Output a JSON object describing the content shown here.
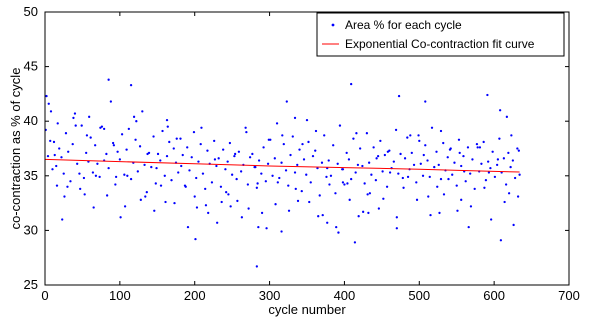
{
  "chart_data": {
    "type": "scatter",
    "xlabel": "cycle number",
    "ylabel": "co-contraction as % of cycle",
    "xlim": [
      0,
      700
    ],
    "ylim": [
      25,
      50
    ],
    "x_ticks": [
      0,
      100,
      200,
      300,
      400,
      500,
      600,
      700
    ],
    "y_ticks": [
      25,
      30,
      35,
      40,
      45,
      50
    ],
    "grid": false,
    "legend_position": "top-right",
    "colors": {
      "points": "#0000ff",
      "fit": "#ff0000",
      "axes": "#000000"
    },
    "series": [
      {
        "name": "Area % for each cycle",
        "type": "scatter",
        "x": [
          1,
          4,
          7,
          10,
          13,
          16,
          19,
          22,
          25,
          28,
          31,
          34,
          37,
          40,
          43,
          46,
          49,
          52,
          55,
          58,
          61,
          64,
          67,
          70,
          73,
          76,
          79,
          82,
          85,
          88,
          91,
          94,
          97,
          100,
          103,
          106,
          109,
          112,
          115,
          118,
          121,
          124,
          127,
          130,
          133,
          136,
          139,
          142,
          145,
          148,
          151,
          154,
          157,
          160,
          163,
          166,
          169,
          172,
          175,
          178,
          181,
          184,
          187,
          190,
          193,
          196,
          199,
          202,
          205,
          208,
          211,
          214,
          217,
          220,
          223,
          226,
          229,
          232,
          235,
          238,
          241,
          244,
          247,
          250,
          253,
          256,
          259,
          262,
          265,
          268,
          271,
          274,
          277,
          280,
          283,
          286,
          289,
          292,
          295,
          298,
          301,
          304,
          307,
          310,
          313,
          316,
          319,
          322,
          325,
          328,
          331,
          334,
          337,
          340,
          343,
          346,
          349,
          352,
          355,
          358,
          361,
          364,
          367,
          370,
          373,
          376,
          379,
          382,
          385,
          388,
          391,
          394,
          397,
          400,
          403,
          406,
          409,
          412,
          415,
          418,
          421,
          424,
          427,
          430,
          433,
          436,
          439,
          442,
          445,
          448,
          451,
          454,
          457,
          460,
          463,
          466,
          469,
          472,
          475,
          478,
          481,
          484,
          487,
          490,
          493,
          496,
          499,
          502,
          505,
          508,
          511,
          514,
          517,
          520,
          523,
          526,
          529,
          532,
          535,
          538,
          541,
          544,
          547,
          550,
          553,
          556,
          559,
          562,
          565,
          568,
          571,
          574,
          577,
          580,
          583,
          586,
          589,
          592,
          595,
          598,
          601,
          604,
          607,
          610,
          613,
          616,
          619,
          622,
          625,
          628,
          631,
          634,
          2,
          8,
          15,
          23,
          30,
          38,
          47,
          56,
          65,
          74,
          83,
          92,
          101,
          110,
          119,
          128,
          137,
          146,
          155,
          164,
          173,
          182,
          191,
          200,
          209,
          218,
          227,
          236,
          245,
          254,
          263,
          272,
          281,
          290,
          299,
          308,
          317,
          326,
          335,
          344,
          353,
          362,
          371,
          380,
          389,
          398,
          407,
          416,
          425,
          434,
          443,
          452,
          461,
          470,
          479,
          488,
          497,
          506,
          515,
          524,
          533,
          542,
          551,
          560,
          569,
          578,
          587,
          596,
          605,
          614,
          623,
          632,
          5,
          12,
          26,
          41,
          53,
          68,
          79,
          95,
          107,
          122,
          134,
          149,
          161,
          176,
          188,
          203,
          215,
          230,
          242,
          257,
          269,
          284,
          296,
          311,
          323,
          338,
          350,
          365,
          377,
          392,
          404,
          419,
          431,
          446,
          458,
          473,
          485,
          500,
          512,
          527,
          539,
          554,
          566,
          581,
          593,
          608,
          620,
          633,
          283,
          285,
          409,
          414,
          609,
          626,
          17,
          59,
          85,
          115,
          163,
          201,
          248,
          316,
          334,
          377,
          398,
          432,
          470,
          508,
          529,
          556,
          591,
          617
        ],
        "y": [
          39.2,
          36.8,
          38.2,
          35.6,
          36.9,
          34.1,
          37.5,
          36.7,
          35.2,
          38.9,
          37.2,
          34.5,
          37.9,
          40.7,
          36.1,
          35.2,
          39.6,
          34.8,
          37.1,
          36.3,
          38.5,
          35.3,
          37.8,
          36.1,
          34.9,
          39.5,
          36.4,
          37.0,
          35.7,
          41.8,
          38.0,
          34.2,
          37.2,
          36.5,
          38.8,
          35.1,
          37.4,
          39.3,
          34.7,
          36.2,
          38.3,
          35.4,
          37.7,
          40.9,
          36.0,
          33.5,
          37.1,
          35.8,
          38.6,
          34.3,
          37.0,
          36.4,
          39.1,
          35.0,
          36.8,
          38.1,
          34.6,
          37.5,
          36.2,
          35.3,
          38.4,
          36.9,
          34.1,
          37.6,
          35.5,
          36.7,
          39.0,
          34.8,
          36.3,
          37.9,
          35.2,
          33.8,
          37.3,
          36.1,
          34.4,
          38.2,
          35.9,
          36.6,
          34.0,
          37.4,
          35.6,
          36.3,
          38.0,
          35.1,
          36.8,
          34.7,
          37.2,
          35.4,
          36.0,
          39.4,
          34.2,
          36.7,
          37.0,
          35.8,
          33.9,
          36.4,
          35.2,
          37.6,
          34.5,
          36.1,
          38.3,
          35.0,
          36.6,
          39.8,
          34.8,
          36.2,
          37.9,
          35.5,
          34.1,
          36.9,
          38.6,
          35.3,
          36.0,
          37.4,
          33.6,
          36.5,
          35.1,
          38.1,
          34.4,
          36.8,
          37.3,
          35.7,
          33.2,
          36.2,
          38.7,
          34.9,
          36.4,
          35.0,
          37.8,
          33.4,
          36.1,
          39.6,
          35.6,
          34.2,
          37.1,
          36.5,
          34.7,
          38.4,
          35.3,
          36.0,
          37.5,
          35.9,
          34.3,
          38.9,
          36.2,
          35.1,
          37.6,
          34.6,
          36.8,
          38.2,
          35.4,
          36.9,
          34.0,
          37.3,
          35.7,
          36.3,
          39.2,
          35.2,
          37.0,
          34.8,
          36.6,
          38.5,
          35.6,
          37.1,
          36.0,
          34.4,
          38.7,
          36.1,
          35.0,
          37.8,
          36.4,
          34.9,
          39.4,
          35.8,
          37.2,
          36.0,
          34.7,
          38.0,
          35.5,
          36.7,
          37.4,
          35.1,
          36.2,
          34.1,
          38.3,
          35.9,
          36.8,
          34.5,
          37.6,
          35.2,
          36.5,
          33.8,
          37.9,
          35.4,
          36.1,
          38.1,
          34.6,
          36.3,
          35.7,
          37.2,
          34.9,
          36.0,
          38.4,
          35.3,
          36.6,
          34.2,
          37.1,
          35.8,
          36.4,
          34.8,
          37.5,
          35.1,
          42.3,
          40.9,
          35.9,
          31.0,
          34.0,
          40.3,
          33.8,
          38.7,
          32.1,
          39.4,
          33.2,
          37.8,
          31.2,
          35.0,
          40.4,
          32.8,
          37.0,
          31.8,
          34.1,
          39.5,
          32.5,
          35.9,
          30.3,
          33.1,
          39.4,
          31.6,
          36.5,
          32.6,
          33.3,
          37.0,
          31.2,
          32.0,
          35.8,
          31.6,
          38.3,
          32.4,
          38.7,
          31.8,
          33.8,
          37.9,
          32.6,
          39.1,
          31.4,
          34.2,
          30.3,
          35.6,
          32.8,
          38.9,
          31.7,
          33.4,
          36.6,
          32.9,
          35.3,
          31.2,
          33.9,
          38.7,
          32.8,
          36.9,
          31.4,
          34.0,
          33.3,
          37.5,
          31.8,
          35.4,
          32.2,
          37.6,
          33.9,
          31.0,
          36.5,
          32.6,
          38.7,
          33.1,
          41.6,
          38.1,
          33.1,
          39.6,
          33.3,
          35.0,
          39.3,
          34.9,
          32.2,
          40.0,
          33.1,
          35.7,
          32.6,
          38.4,
          34.0,
          32.1,
          32.3,
          30.7,
          33.5,
          32.7,
          39.0,
          34.3,
          30.2,
          34.4,
          41.8,
          32.7,
          40.1,
          31.3,
          35.7,
          29.8,
          34.3,
          31.3,
          33.3,
          32.0,
          37.2,
          42.3,
          34.9,
          38.2,
          33.1,
          31.6,
          34.7,
          37.1,
          30.3,
          37.6,
          35.3,
          41.0,
          33.4,
          37.3,
          26.7,
          30.3,
          43.4,
          28.9,
          29.1,
          30.5,
          39.8,
          40.4,
          43.8,
          43.3,
          40.1,
          29.2,
          32.2,
          29.9,
          40.3,
          30.7,
          34.4,
          31.6,
          30.2,
          41.8,
          39.1,
          32.8,
          42.4,
          40.4
        ]
      },
      {
        "name": "Exponential Co-contraction fit curve",
        "type": "line",
        "x": [
          0,
          100,
          200,
          300,
          400,
          500,
          600,
          634
        ],
        "y": [
          36.5,
          36.3,
          36.1,
          35.9,
          35.75,
          35.6,
          35.4,
          35.35
        ]
      }
    ]
  }
}
